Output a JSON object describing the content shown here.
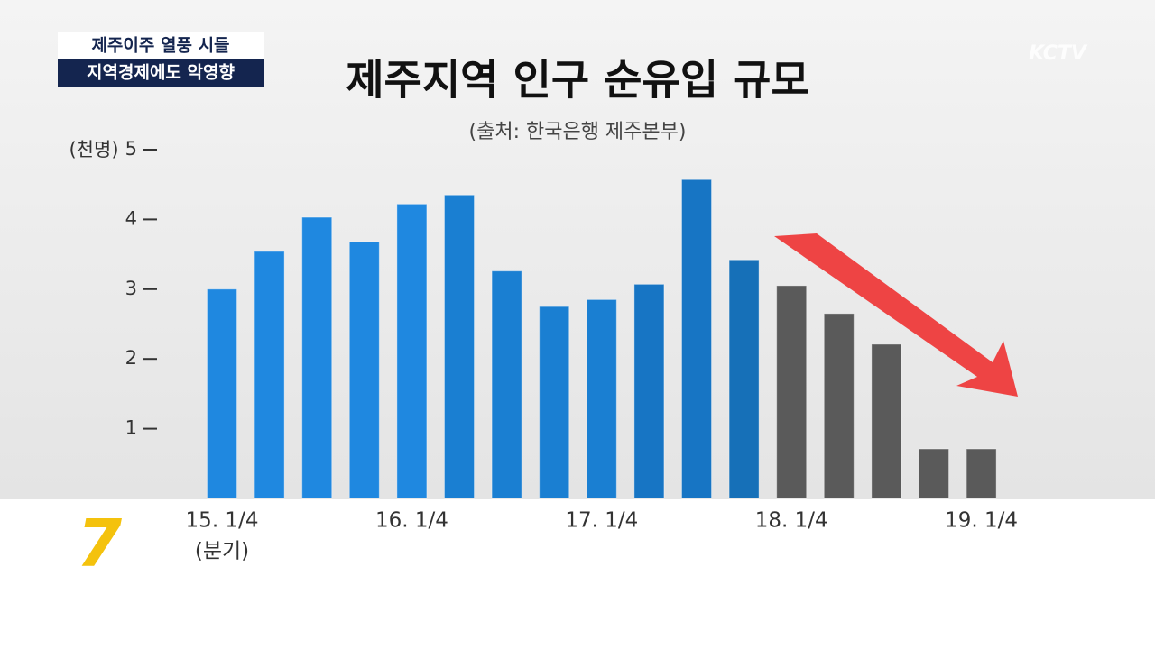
{
  "caption": {
    "line1": "제주이주 열풍 시들",
    "line2": "지역경제에도 악영향"
  },
  "logo": "KCTV",
  "channel": "7",
  "chart_data": {
    "type": "bar",
    "title": "제주지역 인구 순유입 규모",
    "subtitle": "(출처: 한국은행 제주본부)",
    "y_label": "(천명)",
    "x_label": "(분기)",
    "categories": [
      "15. 1/4",
      null,
      null,
      null,
      "16. 1/4",
      null,
      null,
      null,
      "17. 1/4",
      null,
      null,
      null,
      "18. 1/4",
      null,
      null,
      null,
      "19. 1/4"
    ],
    "values": [
      3.0,
      3.54,
      4.03,
      3.68,
      4.22,
      4.35,
      3.26,
      2.75,
      2.85,
      3.07,
      4.57,
      3.42,
      3.05,
      2.65,
      2.21,
      0.71,
      0.71
    ],
    "colors": [
      "#1f88e0",
      "#1f88e0",
      "#1f88e0",
      "#1f88e0",
      "#1f88e0",
      "#1a7fd2",
      "#1a7fd2",
      "#1a7fd2",
      "#1a7fd2",
      "#1775c4",
      "#1775c4",
      "#1670b8",
      "#5a5a5a",
      "#5a5a5a",
      "#5a5a5a",
      "#5a5a5a",
      "#5a5a5a"
    ],
    "ylim": [
      0,
      5
    ],
    "yticks": [
      1,
      2,
      3,
      4,
      5
    ]
  }
}
